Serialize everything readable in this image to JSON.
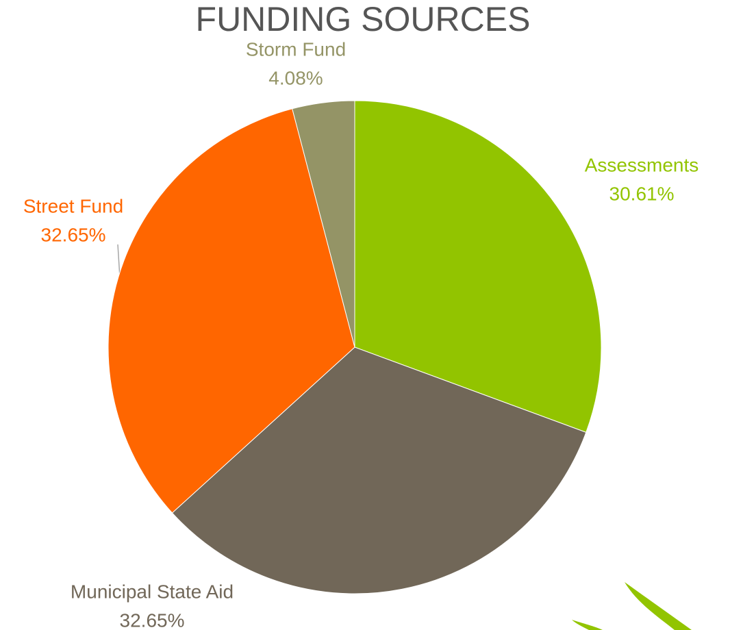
{
  "chart_data": {
    "type": "pie",
    "title": "FUNDING SOURCES",
    "categories": [
      "Assessments",
      "Municipal State Aid",
      "Street Fund",
      "Storm Fund"
    ],
    "values": [
      30.61,
      32.65,
      32.65,
      4.08
    ],
    "value_labels": [
      "30.61%",
      "32.65%",
      "32.65%",
      "4.08%"
    ],
    "colors": [
      "#92c400",
      "#716758",
      "#ff6600",
      "#949466"
    ]
  }
}
